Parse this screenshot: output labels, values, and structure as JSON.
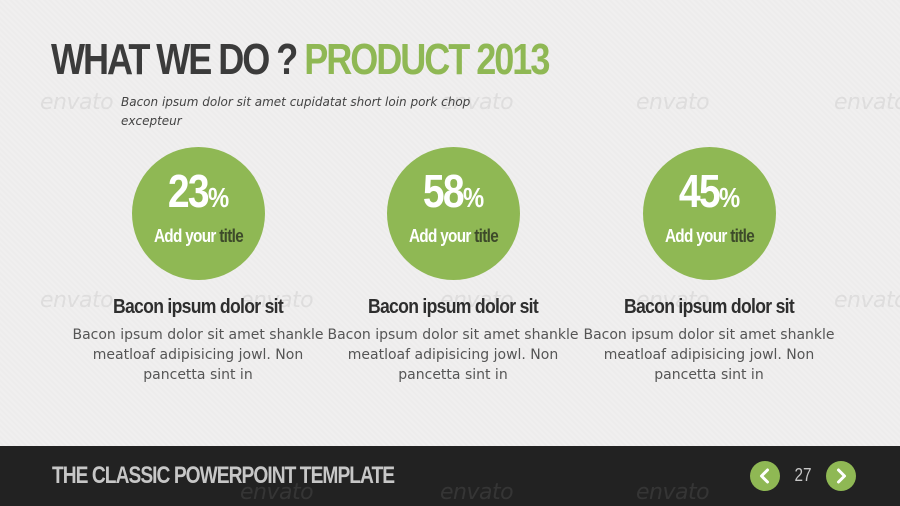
{
  "slide": {
    "title_main": "WHAT WE DO ? ",
    "title_accent": "PRODUCT 2013",
    "subtitle": "Bacon ipsum dolor sit amet cupidatat short loin pork chop excepteur",
    "accent_color": "#8fb854"
  },
  "items": [
    {
      "percent": "23",
      "percent_unit": "%",
      "circle_label_light": "Add your ",
      "circle_label_dark": "title",
      "heading": "Bacon ipsum dolor sit",
      "body": "Bacon ipsum dolor sit amet shankle meatloaf adipisicing jowl. Non pancetta sint in"
    },
    {
      "percent": "58",
      "percent_unit": "%",
      "circle_label_light": "Add your ",
      "circle_label_dark": "title",
      "heading": "Bacon ipsum dolor sit",
      "body": "Bacon ipsum dolor sit amet shankle meatloaf adipisicing jowl. Non pancetta sint in"
    },
    {
      "percent": "45",
      "percent_unit": "%",
      "circle_label_light": "Add your ",
      "circle_label_dark": "title",
      "heading": "Bacon ipsum dolor sit",
      "body": "Bacon ipsum dolor sit amet shankle meatloaf adipisicing jowl. Non pancetta sint in"
    }
  ],
  "footer": {
    "title": "THE CLASSIC POWERPOINT TEMPLATE",
    "page_number": "27",
    "prev_icon": "chevron-left-icon",
    "next_icon": "chevron-right-icon"
  },
  "watermark": {
    "text": "envato"
  }
}
